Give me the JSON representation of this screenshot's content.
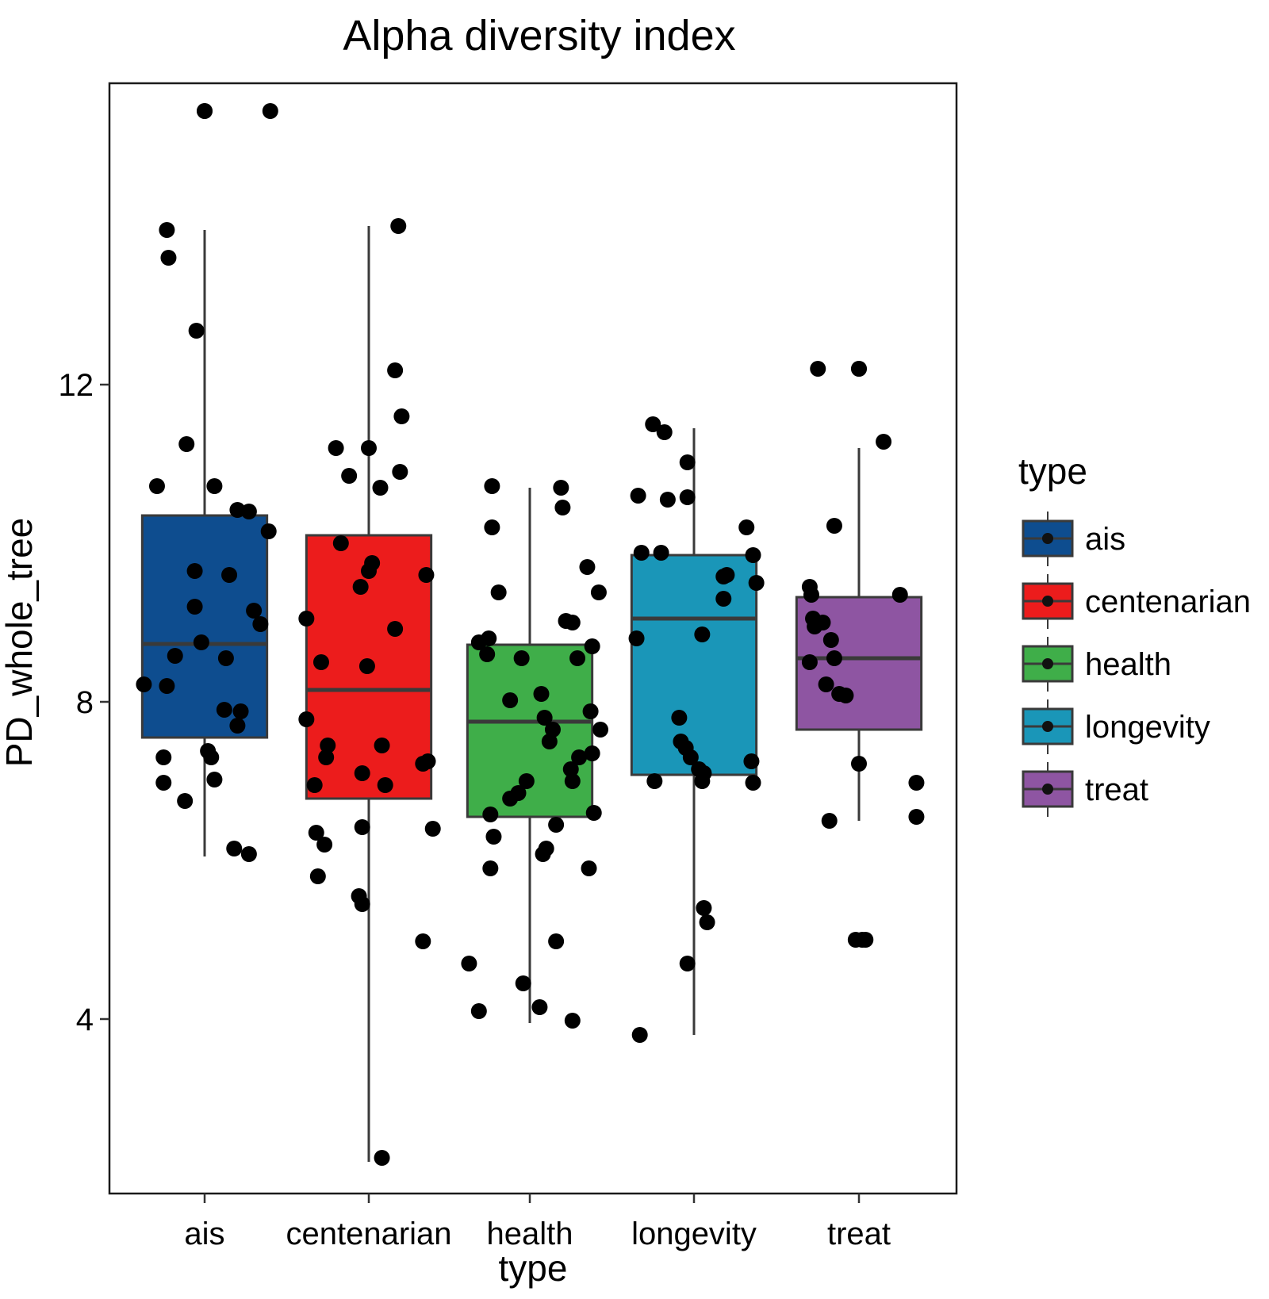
{
  "chart_data": {
    "type": "boxplot",
    "title": "Alpha diversity index",
    "xlabel": "type",
    "ylabel": "PD_whole_tree",
    "categories": [
      "ais",
      "centenarian",
      "health",
      "longevity",
      "treat"
    ],
    "y_ticks": [
      4,
      8,
      12
    ],
    "y_tick_labels": [
      "4",
      "8",
      "12"
    ],
    "ylim": [
      1.6,
      15.7
    ],
    "colors": {
      "ais": "#0e4d8f",
      "centenarian": "#ec1c1c",
      "health": "#3fae49",
      "longevity": "#1a96b8",
      "treat": "#8e55a2",
      "box_line": "#3a3a3a",
      "point": "#000000",
      "outlier": "#3c3c3c"
    },
    "legend": {
      "title": "type",
      "position": "right",
      "entries": [
        "ais",
        "centenarian",
        "health",
        "longevity",
        "treat"
      ]
    },
    "boxes": [
      {
        "name": "ais",
        "whisker_low": 6.05,
        "q1": 7.55,
        "median": 8.73,
        "q3": 10.35,
        "whisker_high": 13.95,
        "outliers": [
          15.45
        ]
      },
      {
        "name": "centenarian",
        "whisker_low": 2.2,
        "q1": 6.78,
        "median": 8.15,
        "q3": 10.1,
        "whisker_high": 14.0,
        "outliers": []
      },
      {
        "name": "health",
        "whisker_low": 3.95,
        "q1": 6.55,
        "median": 7.75,
        "q3": 8.72,
        "whisker_high": 10.7,
        "outliers": []
      },
      {
        "name": "longevity",
        "whisker_low": 3.8,
        "q1": 7.08,
        "median": 9.05,
        "q3": 9.85,
        "whisker_high": 11.45,
        "outliers": []
      },
      {
        "name": "treat",
        "whisker_low": 6.5,
        "q1": 7.65,
        "median": 8.55,
        "q3": 9.32,
        "whisker_high": 11.2,
        "outliers": [
          12.2
        ]
      }
    ],
    "points": [
      {
        "group": "ais",
        "dx": 0.0,
        "y": 15.45
      },
      {
        "group": "ais",
        "dx": 0.4,
        "y": 15.45
      },
      {
        "group": "ais",
        "dx": -0.23,
        "y": 13.95
      },
      {
        "group": "ais",
        "dx": -0.22,
        "y": 13.6
      },
      {
        "group": "ais",
        "dx": -0.05,
        "y": 12.68
      },
      {
        "group": "ais",
        "dx": -0.11,
        "y": 11.25
      },
      {
        "group": "ais",
        "dx": -0.29,
        "y": 10.72
      },
      {
        "group": "ais",
        "dx": 0.06,
        "y": 10.72
      },
      {
        "group": "ais",
        "dx": 0.2,
        "y": 10.42
      },
      {
        "group": "ais",
        "dx": 0.27,
        "y": 10.4
      },
      {
        "group": "ais",
        "dx": 0.39,
        "y": 10.15
      },
      {
        "group": "ais",
        "dx": -0.06,
        "y": 9.65
      },
      {
        "group": "ais",
        "dx": 0.15,
        "y": 9.6
      },
      {
        "group": "ais",
        "dx": -0.06,
        "y": 9.2
      },
      {
        "group": "ais",
        "dx": 0.3,
        "y": 9.15
      },
      {
        "group": "ais",
        "dx": 0.34,
        "y": 8.98
      },
      {
        "group": "ais",
        "dx": -0.02,
        "y": 8.75
      },
      {
        "group": "ais",
        "dx": -0.18,
        "y": 8.58
      },
      {
        "group": "ais",
        "dx": 0.13,
        "y": 8.55
      },
      {
        "group": "ais",
        "dx": -0.37,
        "y": 8.22
      },
      {
        "group": "ais",
        "dx": -0.23,
        "y": 8.2
      },
      {
        "group": "ais",
        "dx": 0.12,
        "y": 7.9
      },
      {
        "group": "ais",
        "dx": 0.22,
        "y": 7.88
      },
      {
        "group": "ais",
        "dx": 0.2,
        "y": 7.7
      },
      {
        "group": "ais",
        "dx": 0.02,
        "y": 7.38
      },
      {
        "group": "ais",
        "dx": 0.04,
        "y": 7.3
      },
      {
        "group": "ais",
        "dx": -0.25,
        "y": 7.3
      },
      {
        "group": "ais",
        "dx": 0.06,
        "y": 7.02
      },
      {
        "group": "ais",
        "dx": -0.25,
        "y": 6.98
      },
      {
        "group": "ais",
        "dx": -0.12,
        "y": 6.75
      },
      {
        "group": "ais",
        "dx": 0.18,
        "y": 6.15
      },
      {
        "group": "ais",
        "dx": 0.27,
        "y": 6.08
      },
      {
        "group": "centenarian",
        "dx": 0.18,
        "y": 14.0
      },
      {
        "group": "centenarian",
        "dx": 0.16,
        "y": 12.18
      },
      {
        "group": "centenarian",
        "dx": 0.2,
        "y": 11.6
      },
      {
        "group": "centenarian",
        "dx": -0.2,
        "y": 11.2
      },
      {
        "group": "centenarian",
        "dx": 0.0,
        "y": 11.2
      },
      {
        "group": "centenarian",
        "dx": -0.12,
        "y": 10.85
      },
      {
        "group": "centenarian",
        "dx": 0.19,
        "y": 10.9
      },
      {
        "group": "centenarian",
        "dx": 0.07,
        "y": 10.7
      },
      {
        "group": "centenarian",
        "dx": -0.17,
        "y": 10.0
      },
      {
        "group": "centenarian",
        "dx": 0.02,
        "y": 9.75
      },
      {
        "group": "centenarian",
        "dx": 0.35,
        "y": 9.6
      },
      {
        "group": "centenarian",
        "dx": 0.0,
        "y": 9.65
      },
      {
        "group": "centenarian",
        "dx": -0.05,
        "y": 9.45
      },
      {
        "group": "centenarian",
        "dx": -0.38,
        "y": 9.05
      },
      {
        "group": "centenarian",
        "dx": 0.16,
        "y": 8.92
      },
      {
        "group": "centenarian",
        "dx": -0.29,
        "y": 8.5
      },
      {
        "group": "centenarian",
        "dx": -0.01,
        "y": 8.45
      },
      {
        "group": "centenarian",
        "dx": -0.38,
        "y": 7.78
      },
      {
        "group": "centenarian",
        "dx": -0.25,
        "y": 7.45
      },
      {
        "group": "centenarian",
        "dx": 0.08,
        "y": 7.45
      },
      {
        "group": "centenarian",
        "dx": -0.26,
        "y": 7.3
      },
      {
        "group": "centenarian",
        "dx": 0.36,
        "y": 7.25
      },
      {
        "group": "centenarian",
        "dx": 0.33,
        "y": 7.22
      },
      {
        "group": "centenarian",
        "dx": -0.04,
        "y": 7.1
      },
      {
        "group": "centenarian",
        "dx": -0.33,
        "y": 6.95
      },
      {
        "group": "centenarian",
        "dx": 0.1,
        "y": 6.95
      },
      {
        "group": "centenarian",
        "dx": -0.04,
        "y": 6.42
      },
      {
        "group": "centenarian",
        "dx": 0.39,
        "y": 6.4
      },
      {
        "group": "centenarian",
        "dx": -0.32,
        "y": 6.35
      },
      {
        "group": "centenarian",
        "dx": -0.27,
        "y": 6.2
      },
      {
        "group": "centenarian",
        "dx": -0.31,
        "y": 5.8
      },
      {
        "group": "centenarian",
        "dx": -0.06,
        "y": 5.55
      },
      {
        "group": "centenarian",
        "dx": -0.04,
        "y": 5.45
      },
      {
        "group": "centenarian",
        "dx": 0.33,
        "y": 4.98
      },
      {
        "group": "centenarian",
        "dx": 0.08,
        "y": 2.25
      },
      {
        "group": "health",
        "dx": -0.23,
        "y": 10.72
      },
      {
        "group": "health",
        "dx": 0.19,
        "y": 10.7
      },
      {
        "group": "health",
        "dx": 0.2,
        "y": 10.45
      },
      {
        "group": "health",
        "dx": -0.23,
        "y": 10.2
      },
      {
        "group": "health",
        "dx": 0.35,
        "y": 9.7
      },
      {
        "group": "health",
        "dx": -0.19,
        "y": 9.38
      },
      {
        "group": "health",
        "dx": 0.42,
        "y": 9.38
      },
      {
        "group": "health",
        "dx": 0.22,
        "y": 9.02
      },
      {
        "group": "health",
        "dx": 0.26,
        "y": 9.0
      },
      {
        "group": "health",
        "dx": -0.31,
        "y": 8.75
      },
      {
        "group": "health",
        "dx": -0.25,
        "y": 8.8
      },
      {
        "group": "health",
        "dx": -0.26,
        "y": 8.6
      },
      {
        "group": "health",
        "dx": -0.05,
        "y": 8.55
      },
      {
        "group": "health",
        "dx": 0.29,
        "y": 8.55
      },
      {
        "group": "health",
        "dx": 0.38,
        "y": 8.7
      },
      {
        "group": "health",
        "dx": 0.07,
        "y": 8.1
      },
      {
        "group": "health",
        "dx": -0.12,
        "y": 8.02
      },
      {
        "group": "health",
        "dx": 0.09,
        "y": 7.8
      },
      {
        "group": "health",
        "dx": 0.37,
        "y": 7.88
      },
      {
        "group": "health",
        "dx": 0.14,
        "y": 7.65
      },
      {
        "group": "health",
        "dx": 0.43,
        "y": 7.65
      },
      {
        "group": "health",
        "dx": 0.12,
        "y": 7.5
      },
      {
        "group": "health",
        "dx": 0.38,
        "y": 7.35
      },
      {
        "group": "health",
        "dx": 0.3,
        "y": 7.3
      },
      {
        "group": "health",
        "dx": 0.25,
        "y": 7.15
      },
      {
        "group": "health",
        "dx": 0.26,
        "y": 7.0
      },
      {
        "group": "health",
        "dx": -0.02,
        "y": 7.0
      },
      {
        "group": "health",
        "dx": -0.07,
        "y": 6.85
      },
      {
        "group": "health",
        "dx": -0.12,
        "y": 6.78
      },
      {
        "group": "health",
        "dx": -0.24,
        "y": 6.58
      },
      {
        "group": "health",
        "dx": 0.39,
        "y": 6.6
      },
      {
        "group": "health",
        "dx": 0.16,
        "y": 6.45
      },
      {
        "group": "health",
        "dx": -0.22,
        "y": 6.3
      },
      {
        "group": "health",
        "dx": 0.1,
        "y": 6.15
      },
      {
        "group": "health",
        "dx": 0.08,
        "y": 6.08
      },
      {
        "group": "health",
        "dx": -0.24,
        "y": 5.9
      },
      {
        "group": "health",
        "dx": 0.36,
        "y": 5.9
      },
      {
        "group": "health",
        "dx": 0.16,
        "y": 4.98
      },
      {
        "group": "health",
        "dx": -0.37,
        "y": 4.7
      },
      {
        "group": "health",
        "dx": -0.04,
        "y": 4.45
      },
      {
        "group": "health",
        "dx": 0.06,
        "y": 4.15
      },
      {
        "group": "health",
        "dx": -0.31,
        "y": 4.1
      },
      {
        "group": "health",
        "dx": 0.26,
        "y": 3.98
      },
      {
        "group": "longevity",
        "dx": -0.25,
        "y": 11.5
      },
      {
        "group": "longevity",
        "dx": -0.18,
        "y": 11.4
      },
      {
        "group": "longevity",
        "dx": -0.04,
        "y": 11.02
      },
      {
        "group": "longevity",
        "dx": -0.34,
        "y": 10.6
      },
      {
        "group": "longevity",
        "dx": -0.16,
        "y": 10.55
      },
      {
        "group": "longevity",
        "dx": -0.04,
        "y": 10.58
      },
      {
        "group": "longevity",
        "dx": 0.32,
        "y": 10.2
      },
      {
        "group": "longevity",
        "dx": -0.32,
        "y": 9.88
      },
      {
        "group": "longevity",
        "dx": -0.2,
        "y": 9.88
      },
      {
        "group": "longevity",
        "dx": 0.36,
        "y": 9.85
      },
      {
        "group": "longevity",
        "dx": 0.18,
        "y": 9.58
      },
      {
        "group": "longevity",
        "dx": 0.2,
        "y": 9.6
      },
      {
        "group": "longevity",
        "dx": 0.38,
        "y": 9.5
      },
      {
        "group": "longevity",
        "dx": 0.18,
        "y": 9.3
      },
      {
        "group": "longevity",
        "dx": 0.05,
        "y": 8.85
      },
      {
        "group": "longevity",
        "dx": -0.35,
        "y": 8.8
      },
      {
        "group": "longevity",
        "dx": -0.09,
        "y": 7.8
      },
      {
        "group": "longevity",
        "dx": -0.08,
        "y": 7.5
      },
      {
        "group": "longevity",
        "dx": -0.05,
        "y": 7.42
      },
      {
        "group": "longevity",
        "dx": -0.02,
        "y": 7.3
      },
      {
        "group": "longevity",
        "dx": 0.35,
        "y": 7.25
      },
      {
        "group": "longevity",
        "dx": 0.03,
        "y": 7.15
      },
      {
        "group": "longevity",
        "dx": 0.06,
        "y": 7.1
      },
      {
        "group": "longevity",
        "dx": 0.05,
        "y": 7.0
      },
      {
        "group": "longevity",
        "dx": 0.36,
        "y": 6.98
      },
      {
        "group": "longevity",
        "dx": -0.24,
        "y": 7.0
      },
      {
        "group": "longevity",
        "dx": 0.06,
        "y": 5.4
      },
      {
        "group": "longevity",
        "dx": 0.08,
        "y": 5.22
      },
      {
        "group": "longevity",
        "dx": -0.04,
        "y": 4.7
      },
      {
        "group": "longevity",
        "dx": -0.33,
        "y": 3.8
      },
      {
        "group": "treat",
        "dx": -0.25,
        "y": 12.2
      },
      {
        "group": "treat",
        "dx": 0.0,
        "y": 12.2
      },
      {
        "group": "treat",
        "dx": 0.15,
        "y": 11.28
      },
      {
        "group": "treat",
        "dx": -0.15,
        "y": 10.22
      },
      {
        "group": "treat",
        "dx": -0.3,
        "y": 9.45
      },
      {
        "group": "treat",
        "dx": -0.29,
        "y": 9.35
      },
      {
        "group": "treat",
        "dx": 0.25,
        "y": 9.35
      },
      {
        "group": "treat",
        "dx": -0.28,
        "y": 9.05
      },
      {
        "group": "treat",
        "dx": -0.22,
        "y": 9.0
      },
      {
        "group": "treat",
        "dx": -0.27,
        "y": 8.95
      },
      {
        "group": "treat",
        "dx": -0.17,
        "y": 8.78
      },
      {
        "group": "treat",
        "dx": -0.3,
        "y": 8.5
      },
      {
        "group": "treat",
        "dx": -0.15,
        "y": 8.55
      },
      {
        "group": "treat",
        "dx": -0.2,
        "y": 8.22
      },
      {
        "group": "treat",
        "dx": -0.12,
        "y": 8.1
      },
      {
        "group": "treat",
        "dx": -0.08,
        "y": 8.08
      },
      {
        "group": "treat",
        "dx": 0.0,
        "y": 7.22
      },
      {
        "group": "treat",
        "dx": 0.35,
        "y": 6.98
      },
      {
        "group": "treat",
        "dx": -0.18,
        "y": 6.5
      },
      {
        "group": "treat",
        "dx": 0.35,
        "y": 6.55
      },
      {
        "group": "treat",
        "dx": -0.02,
        "y": 5.0
      },
      {
        "group": "treat",
        "dx": 0.02,
        "y": 5.0
      },
      {
        "group": "treat",
        "dx": 0.04,
        "y": 5.0
      }
    ]
  }
}
